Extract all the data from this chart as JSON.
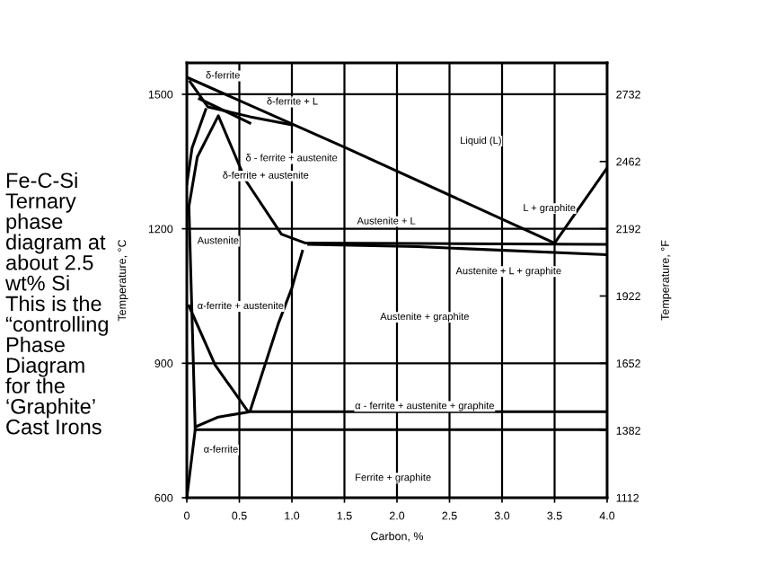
{
  "chart_data": {
    "type": "line",
    "title": "Fe-C-Si\nTernary\nphase\ndiagram at\nabout 2.5\nwt% Si\nThis is the\n“controlling\nPhase\nDiagram\nfor the\n‘Graphite’\nCast Irons",
    "xlabel": "Carbon, %",
    "ylabel": "Temperature, °C",
    "y2label": "Temperature, °F",
    "xlim": [
      0,
      4.0
    ],
    "xticks": [
      0,
      0.5,
      {
        "value": 1.0,
        "label": "1.0"
      },
      1.5,
      {
        "value": 2.0,
        "label": "2.0"
      },
      2.5,
      {
        "value": 3.0,
        "label": "3.0"
      },
      3.5,
      {
        "value": 4.0,
        "label": "4.0"
      }
    ],
    "ylim": [
      600,
      1570
    ],
    "yticks": [
      600,
      900,
      1200,
      1500
    ],
    "y2lim": [
      1112,
      2858
    ],
    "y2ticks": [
      1112,
      1382,
      1652,
      1922,
      2192,
      2462,
      2732
    ],
    "grid": true,
    "marker": "none",
    "line_style": "solid",
    "series": [
      {
        "color": "#000000",
        "x": [
          0,
          1.52,
          3.5,
          4.0
        ],
        "values": [
          1538,
          1380,
          1168,
          1336
        ]
      },
      {
        "color": "#000000",
        "x": [
          0.03,
          0.2,
          0.6,
          1.0
        ],
        "values": [
          1528,
          1472,
          1450,
          1432
        ]
      },
      {
        "color": "#000000",
        "x": [
          0.12,
          0.6
        ],
        "values": [
          1490,
          1436
        ]
      },
      {
        "color": "#000000",
        "x": [
          0,
          0.05,
          0.18
        ],
        "values": [
          1300,
          1380,
          1466
        ]
      },
      {
        "color": "#000000",
        "x": [
          0.08,
          0.05,
          0.02,
          0.1,
          0.3,
          0.56,
          0.9,
          1.13,
          2.2,
          4.0
        ],
        "values": [
          752,
          1000,
          1250,
          1360,
          1452,
          1308,
          1188,
          1168,
          1167,
          1165
        ]
      },
      {
        "color": "#000000",
        "x": [
          1.16,
          2.2,
          4.0
        ],
        "values": [
          1165,
          1160,
          1142
        ]
      },
      {
        "color": "#000000",
        "x": [
          1.1,
          1.0,
          0.87,
          0.6,
          4.0
        ],
        "values": [
          1150,
          1068,
          988,
          792,
          792
        ]
      },
      {
        "color": "#000000",
        "x": [
          0.02,
          0.27,
          0.58
        ],
        "values": [
          1028,
          896,
          793
        ]
      },
      {
        "color": "#000000",
        "x": [
          0.1,
          0.3,
          0.58
        ],
        "values": [
          760,
          780,
          791
        ]
      },
      {
        "color": "#000000",
        "x": [
          0,
          0.08,
          4.0
        ],
        "values": [
          600,
          752,
          752
        ]
      }
    ],
    "annotations": [
      "δ-ferrite",
      "δ-ferrite + L",
      "δ - ferrite + austenite",
      "δ-ferrite + austenite",
      "Liquid (L)",
      "Austenite + L",
      "Austenite",
      "L + graphite",
      "Austenite + L + graphite",
      "Austenite + graphite",
      "α-ferrite + austenite",
      "α - ferrite + austenite + graphite",
      "α-ferrite",
      "Ferrite + graphite"
    ]
  }
}
